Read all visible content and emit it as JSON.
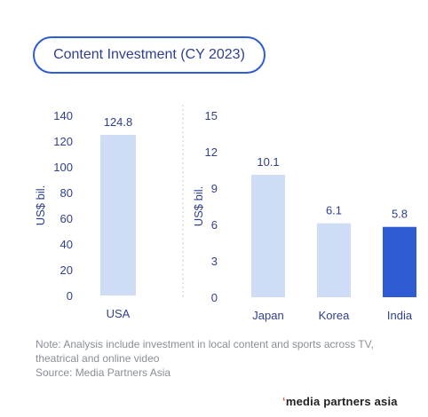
{
  "title": "Content Investment (CY 2023)",
  "chart_data": [
    {
      "type": "bar",
      "categories": [
        "USA"
      ],
      "values": [
        124.8
      ],
      "data_labels": [
        "124.8"
      ],
      "ylabel": "US$ bil.",
      "ylim": [
        0,
        140
      ],
      "yticks": [
        0,
        20,
        40,
        60,
        80,
        100,
        120,
        140
      ],
      "bar_colors": [
        "#cfdcf6"
      ],
      "grid": false
    },
    {
      "type": "bar",
      "categories": [
        "Japan",
        "Korea",
        "India"
      ],
      "values": [
        10.1,
        6.1,
        5.8
      ],
      "data_labels": [
        "10.1",
        "6.1",
        "5.8"
      ],
      "ylabel": "US$ bil.",
      "ylim": [
        0,
        15
      ],
      "yticks": [
        0,
        3,
        6,
        9,
        12,
        15
      ],
      "bar_colors": [
        "#cfdcf6",
        "#cfdcf6",
        "#2f5bd3"
      ],
      "grid": false
    }
  ],
  "note": {
    "line1": "Note: Analysis include investment in local content and sports across TV,",
    "line2": "theatrical and online video",
    "source": "Source: Media Partners Asia"
  },
  "brand": {
    "mark": "ʻ",
    "name": "media partners asia"
  },
  "colors": {
    "accent": "#2f5bd3",
    "light_bar": "#cfdcf6",
    "axis_text": "#2f3f8f",
    "divider": "#c7cbd3"
  }
}
